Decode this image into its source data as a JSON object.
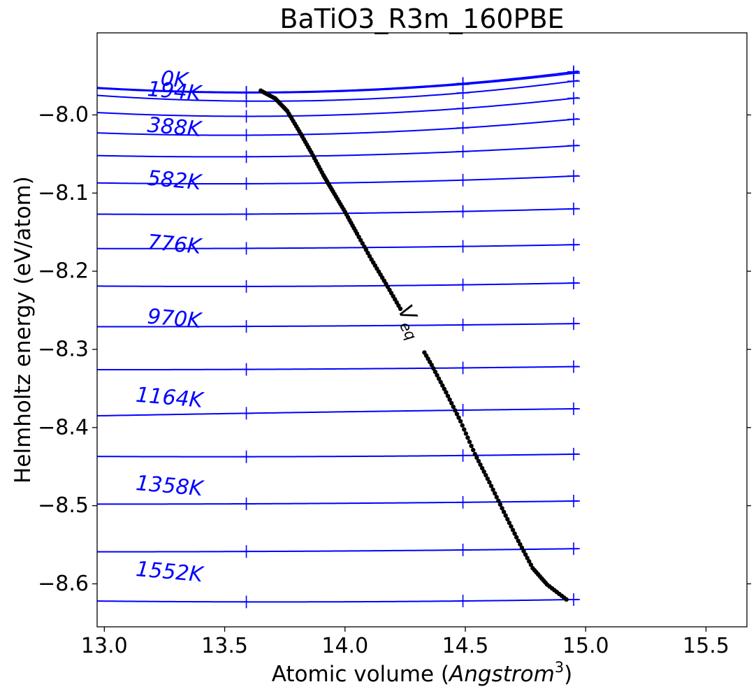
{
  "chart_data": {
    "type": "line",
    "title": "BaTiO3_R3m_160PBE",
    "xlabel_prefix": "Atomic volume (",
    "xlabel_italic": "Angstrom",
    "xlabel_sup": "3",
    "xlabel_suffix": ")",
    "ylabel": "Helmholtz energy (eV/atom)",
    "xlim": [
      12.97,
      15.67
    ],
    "ylim": [
      -8.655,
      -7.895
    ],
    "xticks": [
      13.0,
      13.5,
      14.0,
      14.5,
      15.0,
      15.5
    ],
    "xtick_labels": [
      "13.0",
      "13.5",
      "14.0",
      "14.5",
      "15.0",
      "15.5"
    ],
    "yticks": [
      -8.0,
      -8.1,
      -8.2,
      -8.3,
      -8.4,
      -8.5,
      -8.6
    ],
    "ytick_labels": [
      "−8.0",
      "−8.1",
      "−8.2",
      "−8.3",
      "−8.4",
      "−8.5",
      "−8.6"
    ],
    "grid": false,
    "curve_color": "#0000ff",
    "veq_color": "#000000",
    "curve_x_range": [
      12.97,
      14.97
    ],
    "marker_volumes": [
      13.59,
      14.49,
      14.95
    ],
    "curves": [
      {
        "T": 0,
        "a": -7.965,
        "b": -7.969,
        "c": -7.944
      },
      {
        "T": 97,
        "a": -7.966,
        "b": -7.97,
        "c": -7.946
      },
      {
        "T": 194,
        "a": -7.975,
        "b": -7.981,
        "c": -7.956
      },
      {
        "T": 291,
        "a": -7.997,
        "b": -8.0,
        "c": -7.978
      },
      {
        "T": 388,
        "a": -8.023,
        "b": -8.024,
        "c": -8.005
      },
      {
        "T": 485,
        "a": -8.052,
        "b": -8.052,
        "c": -8.039
      },
      {
        "T": 582,
        "a": -8.087,
        "b": -8.087,
        "c": -8.078
      },
      {
        "T": 679,
        "a": -8.127,
        "b": -8.126,
        "c": -8.12
      },
      {
        "T": 776,
        "a": -8.171,
        "b": -8.17,
        "c": -8.166
      },
      {
        "T": 873,
        "a": -8.219,
        "b": -8.219,
        "c": -8.215
      },
      {
        "T": 970,
        "a": -8.271,
        "b": -8.27,
        "c": -8.267
      },
      {
        "T": 1067,
        "a": -8.326,
        "b": -8.325,
        "c": -8.322
      },
      {
        "T": 1164,
        "a": -8.385,
        "b": -8.38,
        "c": -8.376
      },
      {
        "T": 1261,
        "a": -8.437,
        "b": -8.437,
        "c": -8.434
      },
      {
        "T": 1358,
        "a": -8.498,
        "b": -8.497,
        "c": -8.494
      },
      {
        "T": 1455,
        "a": -8.559,
        "b": -8.558,
        "c": -8.555
      },
      {
        "T": 1552,
        "a": -8.622,
        "b": -8.623,
        "c": -8.62
      }
    ],
    "curve_labels": [
      {
        "text": "0K",
        "x": 13.29,
        "y": -7.955
      },
      {
        "text": "194K",
        "x": 13.29,
        "y": -7.97
      },
      {
        "text": "388K",
        "x": 13.29,
        "y": -8.016
      },
      {
        "text": "582K",
        "x": 13.29,
        "y": -8.084
      },
      {
        "text": "776K",
        "x": 13.29,
        "y": -8.166
      },
      {
        "text": "970K",
        "x": 13.29,
        "y": -8.261
      },
      {
        "text": "1164K",
        "x": 13.27,
        "y": -8.362
      },
      {
        "text": "1358K",
        "x": 13.27,
        "y": -8.475
      },
      {
        "text": "1552K",
        "x": 13.27,
        "y": -8.585
      }
    ],
    "veq": {
      "label": "V",
      "label_sub": "eq",
      "label_x": 14.25,
      "label_y": -8.268,
      "gap": [
        14.235,
        14.33
      ],
      "points": [
        [
          13.65,
          -7.969
        ],
        [
          13.71,
          -7.979
        ],
        [
          13.76,
          -7.995
        ],
        [
          13.81,
          -8.021
        ],
        [
          13.86,
          -8.048
        ],
        [
          13.91,
          -8.077
        ],
        [
          13.95,
          -8.098
        ],
        [
          14.0,
          -8.124
        ],
        [
          14.05,
          -8.152
        ],
        [
          14.11,
          -8.185
        ],
        [
          14.17,
          -8.216
        ],
        [
          14.23,
          -8.248
        ],
        [
          14.3,
          -8.288
        ],
        [
          14.36,
          -8.32
        ],
        [
          14.42,
          -8.355
        ],
        [
          14.48,
          -8.392
        ],
        [
          14.54,
          -8.434
        ],
        [
          14.6,
          -8.47
        ],
        [
          14.66,
          -8.508
        ],
        [
          14.72,
          -8.545
        ],
        [
          14.78,
          -8.58
        ],
        [
          14.84,
          -8.601
        ],
        [
          14.92,
          -8.62
        ]
      ]
    }
  }
}
